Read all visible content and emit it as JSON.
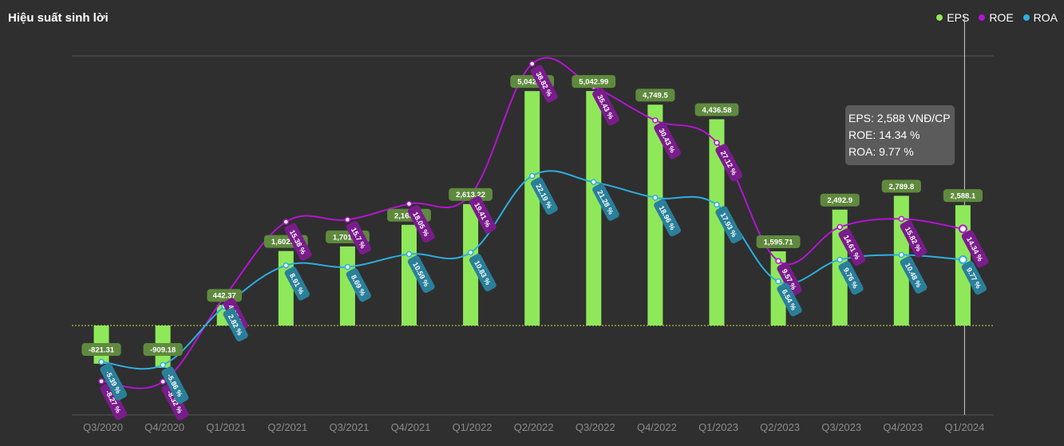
{
  "title": "Hiệu suất sinh lời",
  "legend": [
    {
      "name": "EPS",
      "color": "#8fe85a"
    },
    {
      "name": "ROE",
      "color": "#b414d2"
    },
    {
      "name": "ROA",
      "color": "#2eaee0"
    }
  ],
  "tooltip": {
    "eps": "EPS: 2,588 VNĐ/CP",
    "roe": "ROE: 14.34 %",
    "roa": "ROA: 9.77 %"
  },
  "chart_data": {
    "type": "bar",
    "categories": [
      "Q3/2020",
      "Q4/2020",
      "Q1/2021",
      "Q2/2021",
      "Q3/2021",
      "Q4/2021",
      "Q1/2022",
      "Q2/2022",
      "Q3/2022",
      "Q4/2022",
      "Q1/2023",
      "Q2/2023",
      "Q3/2023",
      "Q4/2023",
      "Q1/2024"
    ],
    "series": [
      {
        "name": "EPS",
        "type": "bar",
        "color": "#8fe85a",
        "values": [
          -821.31,
          -909.18,
          442.37,
          1602.58,
          1701.32,
          2165.94,
          2613.22,
          5042.17,
          5042.99,
          4749.5,
          4436.58,
          1595.71,
          2492.9,
          2789.8,
          2588.1
        ],
        "labels": [
          "-821.31",
          "-909.18",
          "442.37",
          "1,602.58",
          "1,701.32",
          "2,165.94",
          "2,613.22",
          "5,042.17",
          "5,042.99",
          "4,749.5",
          "4,436.58",
          "1,595.71",
          "2,492.9",
          "2,789.8",
          "2,588.1"
        ]
      },
      {
        "name": "ROE",
        "type": "line",
        "color": "#b414d2",
        "values": [
          -8.27,
          -8.32,
          4.27,
          15.38,
          15.7,
          18.05,
          19.41,
          38.82,
          35.43,
          30.43,
          27.12,
          9.57,
          14.61,
          15.82,
          14.34
        ],
        "labels": [
          "-8.27 %",
          "-8.32 %",
          "4.27 %",
          "15.38 %",
          "15.7 %",
          "18.05 %",
          "19.41 %",
          "38.82 %",
          "35.43 %",
          "30.43 %",
          "27.12 %",
          "9.57 %",
          "14.61 %",
          "15.82 %",
          "14.34 %"
        ]
      },
      {
        "name": "ROA",
        "type": "line",
        "color": "#2eaee0",
        "values": [
          -5.39,
          -5.86,
          2.82,
          8.91,
          8.69,
          10.59,
          10.83,
          22.19,
          21.28,
          18.96,
          17.93,
          6.54,
          9.76,
          10.48,
          9.77
        ],
        "labels": [
          "-5.39 %",
          "-5.86 %",
          "2.82 %",
          "8.91 %",
          "8.69 %",
          "10.59 %",
          "10.83 %",
          "22.19 %",
          "21.28 %",
          "18.96 %",
          "17.93 %",
          "6.54 %",
          "9.76 %",
          "10.48 %",
          "9.77 %"
        ]
      }
    ],
    "eps_range": [
      -1600,
      5800
    ],
    "pct_range": [
      -15,
      40
    ],
    "grid": false,
    "legend_position": "top-right",
    "highlighted_category": "Q1/2024"
  }
}
